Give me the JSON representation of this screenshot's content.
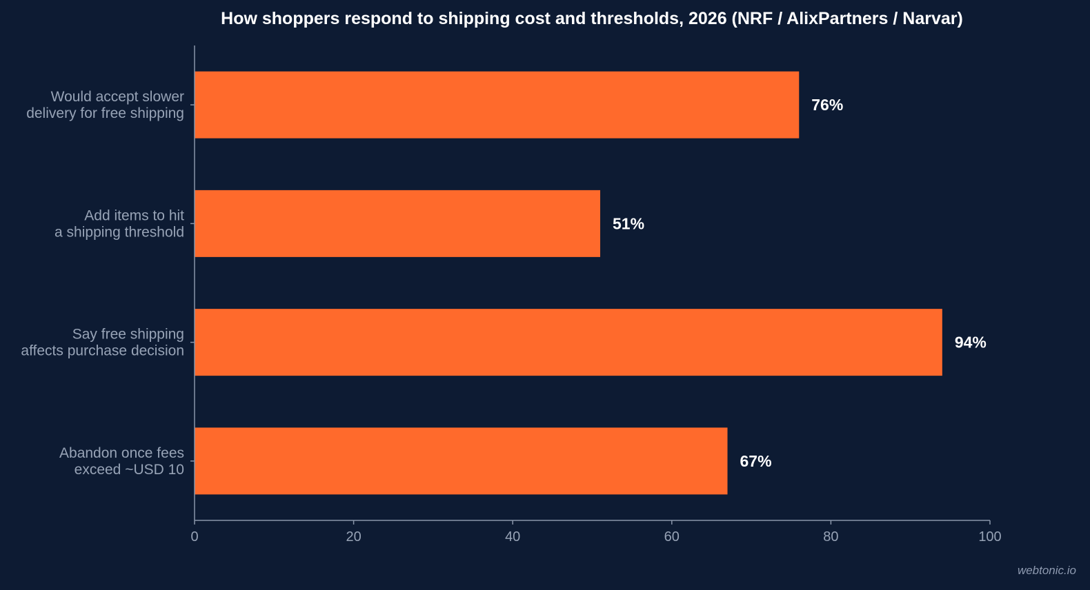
{
  "watermark": "webtonic.io",
  "colors": {
    "background": "#0d1b33",
    "bar": "#ff6a2c",
    "text": "#ffffff",
    "muted": "#97a3b6"
  },
  "chart_data": {
    "type": "bar",
    "orientation": "horizontal",
    "title": "How shoppers respond to shipping cost and thresholds, 2026 (NRF / AlixPartners / Narvar)",
    "xlabel": "",
    "ylabel": "",
    "xlim": [
      0,
      100
    ],
    "xticks": [
      0,
      20,
      40,
      60,
      80,
      100
    ],
    "grid": false,
    "categories": [
      [
        "Would accept slower",
        "delivery for free shipping"
      ],
      [
        "Add items to hit",
        "a shipping threshold"
      ],
      [
        "Say free shipping",
        "affects purchase decision"
      ],
      [
        "Abandon once fees",
        "exceed ~USD 10"
      ]
    ],
    "values": [
      76,
      51,
      94,
      67
    ],
    "value_labels": [
      "76%",
      "51%",
      "94%",
      "67%"
    ]
  }
}
